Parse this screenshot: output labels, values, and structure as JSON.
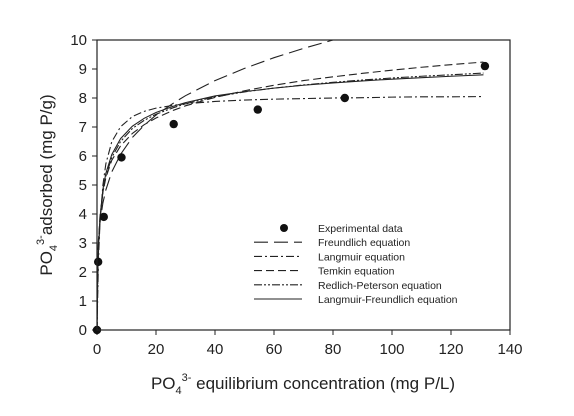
{
  "chart_data": {
    "type": "scatter",
    "x_axis": {
      "label_main": "PO",
      "label_sub": "4",
      "label_sup": "3-",
      "label_rest": " equilibrium concentration (mg P/L)",
      "range": [
        0,
        140
      ],
      "ticks": [
        0,
        20,
        40,
        60,
        80,
        100,
        120,
        140
      ]
    },
    "y_axis": {
      "label_main": "PO",
      "label_sub": "4",
      "label_sup": "3-",
      "label_rest": "adsorbed (mg P/g)",
      "range": [
        0,
        10
      ],
      "ticks": [
        0,
        1,
        2,
        3,
        4,
        5,
        6,
        7,
        8,
        9,
        10
      ]
    },
    "grid": false,
    "legend_position": "bottom-right",
    "experimental": {
      "name": "Experimental data",
      "color": "#111111",
      "points": [
        [
          0,
          0
        ],
        [
          0.4,
          2.35
        ],
        [
          2.3,
          3.9
        ],
        [
          8.3,
          5.95
        ],
        [
          26,
          7.1
        ],
        [
          54.5,
          7.6
        ],
        [
          84,
          8.0
        ],
        [
          131.5,
          9.1
        ]
      ]
    },
    "models": [
      {
        "name": "Freundlich equation",
        "dash": "14 6",
        "color": "#222222",
        "x": [
          0,
          0.2,
          0.5,
          1,
          2,
          3,
          5,
          8,
          12,
          16,
          20,
          26,
          30,
          40,
          50,
          60,
          70,
          80,
          90,
          100,
          110,
          120,
          131
        ],
        "y": [
          0,
          2.46,
          3.13,
          3.7,
          4.38,
          4.83,
          5.45,
          6.06,
          6.64,
          7.06,
          7.41,
          7.83,
          8.08,
          8.6,
          9.02,
          9.39,
          9.71,
          10.0,
          10.27,
          10.51,
          10.74,
          10.96,
          11.18
        ]
      },
      {
        "name": "Langmuir equation",
        "dash": "8 3 2 3",
        "color": "#222222",
        "x": [
          0,
          0.5,
          1,
          2,
          3,
          5,
          8,
          12,
          16,
          20,
          26,
          30,
          40,
          50,
          60,
          70,
          80,
          90,
          100,
          110,
          120,
          131
        ],
        "y": [
          0,
          2.42,
          3.68,
          5.0,
          5.73,
          6.49,
          7.01,
          7.36,
          7.54,
          7.65,
          7.75,
          7.8,
          7.88,
          7.93,
          7.96,
          7.98,
          8.0,
          8.01,
          8.03,
          8.04,
          8.04,
          8.05
        ]
      },
      {
        "name": "Temkin equation",
        "dash": "8 4",
        "color": "#222222",
        "x": [
          0,
          0.2,
          0.5,
          1,
          2,
          3,
          5,
          8,
          12,
          16,
          20,
          26,
          30,
          40,
          50,
          60,
          70,
          80,
          90,
          100,
          110,
          120,
          131
        ],
        "y": [
          0,
          1.7,
          3.0,
          3.9,
          4.75,
          5.25,
          5.85,
          6.35,
          6.78,
          7.08,
          7.31,
          7.58,
          7.73,
          8.02,
          8.25,
          8.44,
          8.6,
          8.73,
          8.85,
          8.96,
          9.06,
          9.15,
          9.24
        ]
      },
      {
        "name": "Redlich-Peterson equation",
        "dash": "8 2 2 2 2 2",
        "color": "#222222",
        "x": [
          0,
          0.2,
          0.5,
          1,
          2,
          3,
          5,
          8,
          12,
          16,
          20,
          26,
          30,
          40,
          50,
          60,
          70,
          80,
          90,
          100,
          110,
          120,
          131
        ],
        "y": [
          0,
          1.45,
          2.7,
          3.75,
          4.75,
          5.3,
          5.95,
          6.5,
          6.95,
          7.23,
          7.44,
          7.67,
          7.8,
          8.04,
          8.21,
          8.34,
          8.45,
          8.54,
          8.62,
          8.69,
          8.75,
          8.8,
          8.86
        ]
      },
      {
        "name": "Langmuir-Freundlich equation",
        "dash": "",
        "color": "#222222",
        "x": [
          0,
          0.2,
          0.5,
          1,
          2,
          3,
          5,
          8,
          12,
          16,
          20,
          26,
          30,
          40,
          50,
          60,
          70,
          80,
          90,
          100,
          110,
          120,
          131
        ],
        "y": [
          0,
          1.6,
          2.85,
          3.85,
          4.85,
          5.4,
          6.05,
          6.6,
          7.03,
          7.3,
          7.5,
          7.72,
          7.84,
          8.07,
          8.22,
          8.34,
          8.44,
          8.52,
          8.59,
          8.65,
          8.7,
          8.75,
          8.8
        ]
      }
    ]
  }
}
